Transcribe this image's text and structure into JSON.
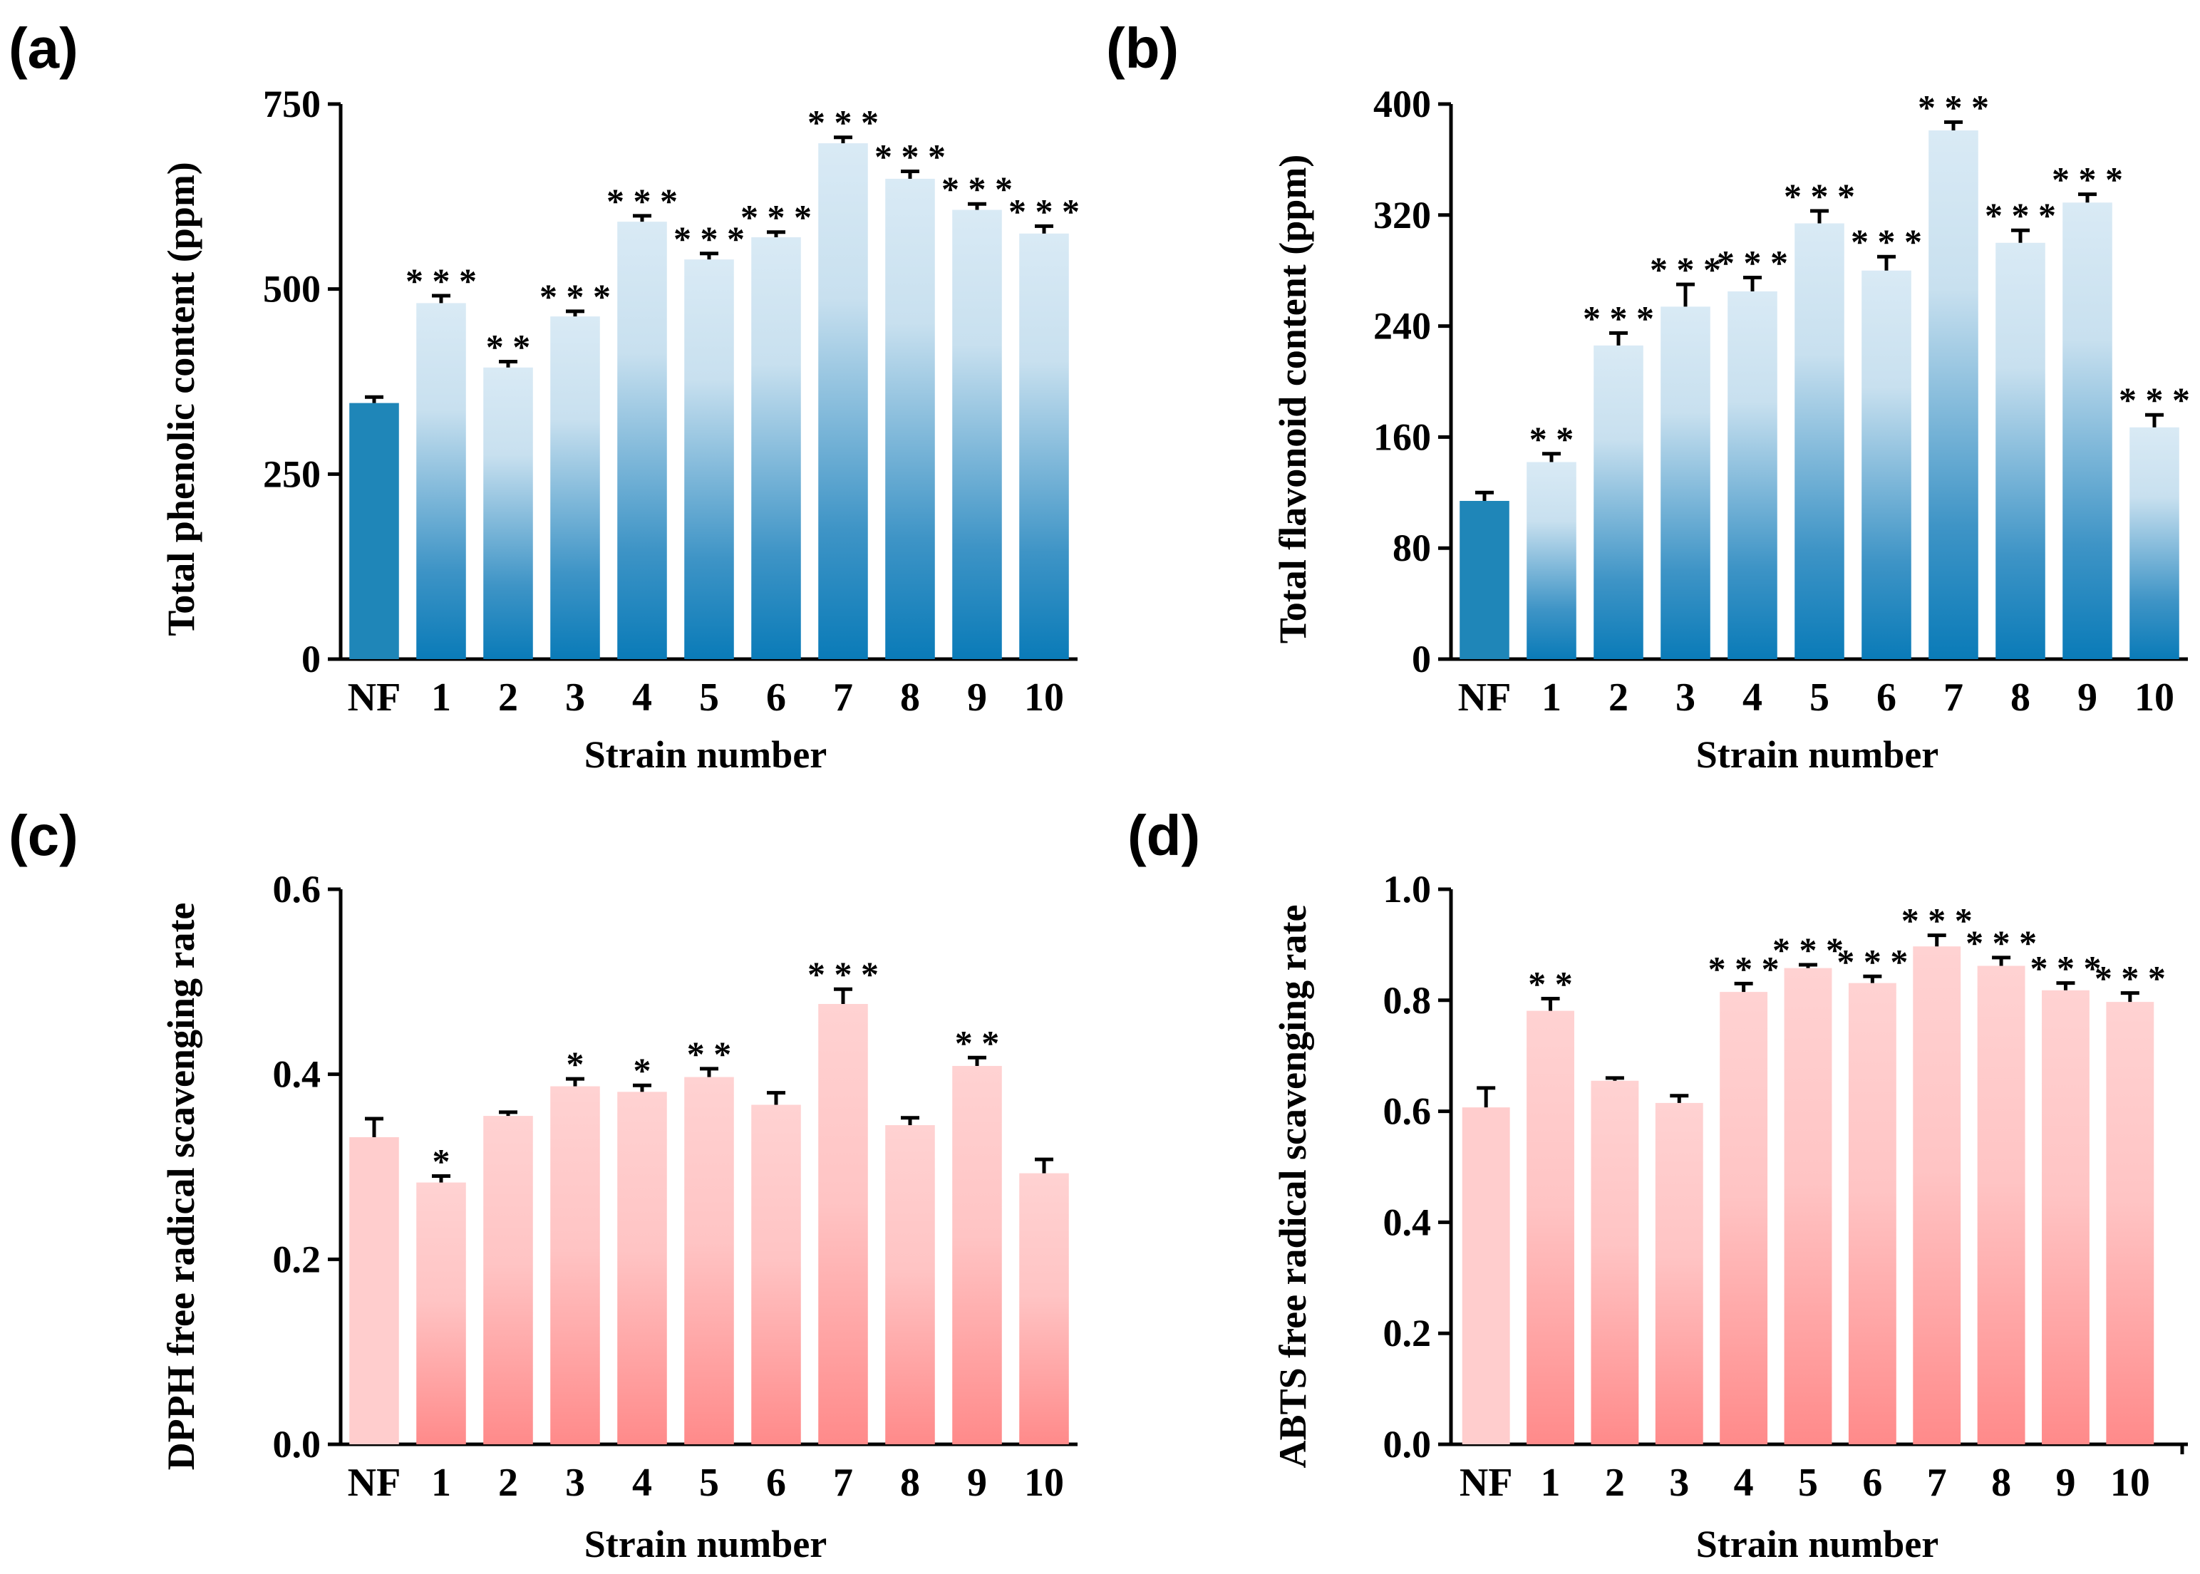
{
  "chart_data": [
    {
      "type": "bar",
      "panel": "(a)",
      "categories": [
        "NF",
        "1",
        "2",
        "3",
        "4",
        "5",
        "6",
        "7",
        "8",
        "9",
        "10"
      ],
      "values": [
        346,
        481,
        394,
        463,
        591,
        540,
        570,
        697,
        649,
        607,
        575
      ],
      "errors": [
        8,
        10,
        8,
        7,
        8,
        8,
        7,
        8,
        10,
        8,
        10
      ],
      "significance": [
        "",
        "***",
        "**",
        "***",
        "***",
        "***",
        "***",
        "***",
        "***",
        "***",
        "***"
      ],
      "xlabel": "Strain number",
      "ylabel": "Total phenolic content (ppm)",
      "ylim": [
        0,
        750
      ],
      "yticks": [
        "0",
        "250",
        "500",
        "750"
      ],
      "palette": {
        "solid": "#1f86b8",
        "top": "#d9eaf5",
        "bottom": "#0a7bb8"
      }
    },
    {
      "type": "bar",
      "panel": "(b)",
      "categories": [
        "NF",
        "1",
        "2",
        "3",
        "4",
        "5",
        "6",
        "7",
        "8",
        "9",
        "10"
      ],
      "values": [
        114,
        142,
        226,
        254,
        265,
        314,
        280,
        381,
        300,
        329,
        167
      ],
      "errors": [
        6,
        6,
        9,
        16,
        10,
        9,
        10,
        6,
        9,
        6,
        9
      ],
      "significance": [
        "",
        "**",
        "***",
        "***",
        "***",
        "***",
        "***",
        "***",
        "***",
        "***",
        "***"
      ],
      "xlabel": "Strain number",
      "ylabel": "Total flavonoid content (ppm)",
      "ylim": [
        0,
        400
      ],
      "yticks": [
        "0",
        "80",
        "160",
        "240",
        "320",
        "400"
      ],
      "palette": {
        "solid": "#1f86b8",
        "top": "#d9eaf5",
        "bottom": "#0a7bb8"
      }
    },
    {
      "type": "bar",
      "panel": "(c)",
      "categories": [
        "NF",
        "1",
        "2",
        "3",
        "4",
        "5",
        "6",
        "7",
        "8",
        "9",
        "10"
      ],
      "values": [
        0.332,
        0.283,
        0.355,
        0.387,
        0.381,
        0.397,
        0.367,
        0.476,
        0.345,
        0.409,
        0.293
      ],
      "errors": [
        0.02,
        0.007,
        0.004,
        0.008,
        0.007,
        0.009,
        0.013,
        0.016,
        0.008,
        0.009,
        0.015
      ],
      "significance": [
        "",
        "*",
        "",
        "*",
        "*",
        "**",
        "",
        "***",
        "",
        "**",
        ""
      ],
      "xlabel": "Strain number",
      "ylabel": "DPPH free radical scavenging rate",
      "ylim": [
        0,
        0.6
      ],
      "yticks": [
        "0.0",
        "0.2",
        "0.4",
        "0.6"
      ],
      "palette": {
        "solid": "#ffcdcd",
        "top": "#ffd2d2",
        "bottom": "#ff8a8a"
      }
    },
    {
      "type": "bar",
      "panel": "(d)",
      "categories": [
        "NF",
        "1",
        "2",
        "3",
        "4",
        "5",
        "6",
        "7",
        "8",
        "9",
        "10"
      ],
      "values": [
        0.607,
        0.781,
        0.655,
        0.615,
        0.815,
        0.858,
        0.831,
        0.897,
        0.862,
        0.818,
        0.797
      ],
      "errors": [
        0.035,
        0.022,
        0.005,
        0.013,
        0.015,
        0.006,
        0.012,
        0.02,
        0.015,
        0.013,
        0.016
      ],
      "significance": [
        "",
        "**",
        "",
        "",
        "***",
        "***",
        "***",
        "***",
        "***",
        "***",
        "***"
      ],
      "xlabel": "Strain number",
      "ylabel": "ABTS free radical scavenging rate",
      "ylim": [
        0,
        1.0
      ],
      "yticks": [
        "0.0",
        "0.2",
        "0.4",
        "0.6",
        "0.8",
        "1.0"
      ],
      "palette": {
        "solid": "#ffcdcd",
        "top": "#ffd2d2",
        "bottom": "#ff8a8a"
      }
    }
  ]
}
